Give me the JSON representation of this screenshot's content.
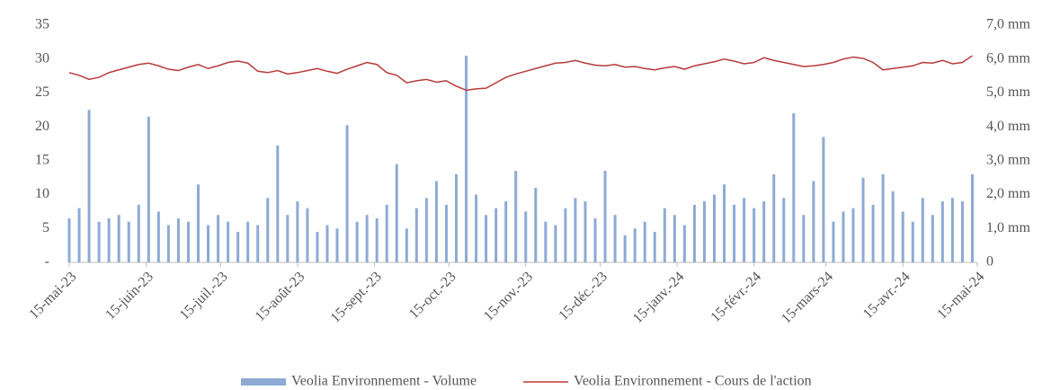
{
  "chart_data": {
    "type": "combo",
    "x": [
      "2023-05-15",
      "2023-05-19",
      "2023-05-23",
      "2023-05-27",
      "2023-05-31",
      "2023-06-04",
      "2023-06-08",
      "2023-06-12",
      "2023-06-16",
      "2023-06-20",
      "2023-06-24",
      "2023-06-28",
      "2023-07-02",
      "2023-07-06",
      "2023-07-10",
      "2023-07-14",
      "2023-07-18",
      "2023-07-22",
      "2023-07-26",
      "2023-07-30",
      "2023-08-03",
      "2023-08-07",
      "2023-08-11",
      "2023-08-15",
      "2023-08-19",
      "2023-08-23",
      "2023-08-27",
      "2023-08-31",
      "2023-09-04",
      "2023-09-08",
      "2023-09-12",
      "2023-09-16",
      "2023-09-20",
      "2023-09-24",
      "2023-09-28",
      "2023-10-02",
      "2023-10-06",
      "2023-10-10",
      "2023-10-14",
      "2023-10-18",
      "2023-10-22",
      "2023-10-26",
      "2023-10-30",
      "2023-11-03",
      "2023-11-07",
      "2023-11-11",
      "2023-11-15",
      "2023-11-19",
      "2023-11-23",
      "2023-11-27",
      "2023-12-01",
      "2023-12-05",
      "2023-12-09",
      "2023-12-13",
      "2023-12-17",
      "2023-12-21",
      "2023-12-25",
      "2023-12-29",
      "2024-01-02",
      "2024-01-06",
      "2024-01-10",
      "2024-01-14",
      "2024-01-18",
      "2024-01-22",
      "2024-01-26",
      "2024-01-30",
      "2024-02-03",
      "2024-02-07",
      "2024-02-11",
      "2024-02-15",
      "2024-02-19",
      "2024-02-23",
      "2024-02-27",
      "2024-03-02",
      "2024-03-06",
      "2024-03-10",
      "2024-03-14",
      "2024-03-18",
      "2024-03-22",
      "2024-03-26",
      "2024-03-30",
      "2024-04-03",
      "2024-04-07",
      "2024-04-11",
      "2024-04-15",
      "2024-04-19",
      "2024-04-23",
      "2024-04-27",
      "2024-05-01",
      "2024-05-05",
      "2024-05-09",
      "2024-05-13"
    ],
    "series": [
      {
        "name": "Veolia Environnement - Volume",
        "color": "#8eaad6",
        "type": "bar",
        "axis": "y2",
        "values": [
          1.3,
          1.6,
          4.5,
          1.2,
          1.3,
          1.4,
          1.2,
          1.7,
          4.3,
          1.5,
          1.1,
          1.3,
          1.2,
          2.3,
          1.1,
          1.4,
          1.2,
          0.9,
          1.2,
          1.1,
          1.9,
          3.45,
          1.4,
          1.8,
          1.6,
          0.9,
          1.1,
          1.0,
          4.05,
          1.2,
          1.4,
          1.3,
          1.7,
          2.9,
          1.0,
          1.6,
          1.9,
          2.4,
          1.7,
          2.6,
          6.1,
          2.0,
          1.4,
          1.6,
          1.8,
          2.7,
          1.5,
          2.2,
          1.2,
          1.1,
          1.6,
          1.9,
          1.8,
          1.3,
          2.7,
          1.4,
          0.8,
          1.0,
          1.2,
          0.9,
          1.6,
          1.4,
          1.1,
          1.7,
          1.8,
          2.0,
          2.3,
          1.7,
          1.9,
          1.6,
          1.8,
          2.6,
          1.9,
          4.4,
          1.4,
          2.4,
          3.7,
          1.2,
          1.5,
          1.6,
          2.5,
          1.7,
          2.6,
          2.1,
          1.5,
          1.2,
          1.9,
          1.4,
          1.8,
          1.9,
          1.8,
          2.6
        ]
      },
      {
        "name": "Veolia Environnement - Cours de l'action",
        "color": "#b83a3a",
        "type": "line",
        "values": [
          28.0,
          27.6,
          27.0,
          27.3,
          28.0,
          28.4,
          28.8,
          29.2,
          29.4,
          29.0,
          28.5,
          28.3,
          28.8,
          29.2,
          28.6,
          29.0,
          29.5,
          29.7,
          29.4,
          28.2,
          28.0,
          28.3,
          27.8,
          28.0,
          28.3,
          28.6,
          28.2,
          27.9,
          28.5,
          29.0,
          29.5,
          29.2,
          28.0,
          27.6,
          26.5,
          26.8,
          27.0,
          26.6,
          26.8,
          26.0,
          25.4,
          25.6,
          25.7,
          26.5,
          27.3,
          27.8,
          28.2,
          28.6,
          29.0,
          29.4,
          29.5,
          29.8,
          29.4,
          29.1,
          29.0,
          29.2,
          28.8,
          28.9,
          28.6,
          28.4,
          28.7,
          28.9,
          28.5,
          29.0,
          29.3,
          29.6,
          30.0,
          29.7,
          29.3,
          29.5,
          30.2,
          29.8,
          29.5,
          29.2,
          28.9,
          29.0,
          29.2,
          29.5,
          30.0,
          30.3,
          30.1,
          29.5,
          28.4,
          28.6,
          28.8,
          29.0,
          29.5,
          29.4,
          29.8,
          29.3,
          29.5,
          30.5
        ]
      }
    ],
    "xlim": [
      "2023-05-15",
      "2024-05-15"
    ],
    "xticks": [
      {
        "value": "2023-05-15",
        "label": "15-mai-23"
      },
      {
        "value": "2023-06-15",
        "label": "15-juin-23"
      },
      {
        "value": "2023-07-15",
        "label": "15-juil.-23"
      },
      {
        "value": "2023-08-15",
        "label": "15-août-23"
      },
      {
        "value": "2023-09-15",
        "label": "15-sept.-23"
      },
      {
        "value": "2023-10-15",
        "label": "15-oct.-23"
      },
      {
        "value": "2023-11-15",
        "label": "15-nov.-23"
      },
      {
        "value": "2023-12-15",
        "label": "15-déc.-23"
      },
      {
        "value": "2024-01-15",
        "label": "15-janv.-24"
      },
      {
        "value": "2024-02-15",
        "label": "15-févr.-24"
      },
      {
        "value": "2024-03-15",
        "label": "15-mars-24"
      },
      {
        "value": "2024-04-15",
        "label": "15-avr.-24"
      },
      {
        "value": "2024-05-15",
        "label": "15-mai-24"
      }
    ],
    "ylim": [
      0,
      35
    ],
    "yticks": [
      {
        "value": 0,
        "label": "-"
      },
      5,
      10,
      15,
      20,
      25,
      30,
      35
    ],
    "y2lim": [
      0,
      7
    ],
    "y2ticks": [
      0,
      {
        "value": 1,
        "label": "1,0 mm"
      },
      {
        "value": 2,
        "label": "2,0 mm"
      },
      {
        "value": 3,
        "label": "3,0 mm"
      },
      {
        "value": 4,
        "label": "4,0 mm"
      },
      {
        "value": 5,
        "label": "5,0 mm"
      },
      {
        "value": 6,
        "label": "6,0 mm"
      },
      {
        "value": 7,
        "label": "7,0 mm"
      }
    ],
    "legend": "bottom"
  }
}
